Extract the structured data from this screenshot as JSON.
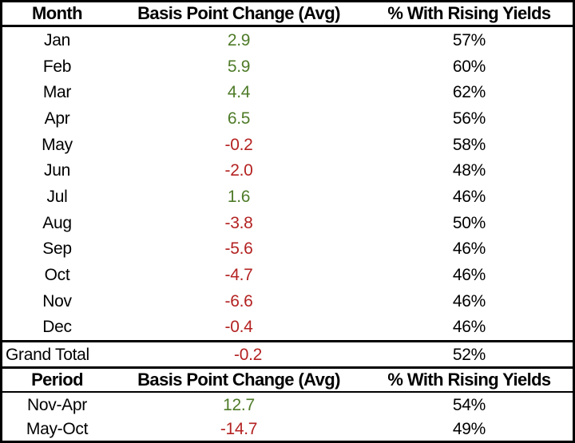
{
  "colors": {
    "positive": "#4e7b28",
    "negative": "#b42222",
    "text": "#000000",
    "border": "#000000",
    "background": "#ffffff"
  },
  "monthly_table": {
    "headers": [
      "Month",
      "Basis Point Change (Avg)",
      "% With Rising Yields"
    ],
    "rows": [
      {
        "month": "Jan",
        "bp_change": "2.9",
        "pct_rising": "57%"
      },
      {
        "month": "Feb",
        "bp_change": "5.9",
        "pct_rising": "60%"
      },
      {
        "month": "Mar",
        "bp_change": "4.4",
        "pct_rising": "62%"
      },
      {
        "month": "Apr",
        "bp_change": "6.5",
        "pct_rising": "56%"
      },
      {
        "month": "May",
        "bp_change": "-0.2",
        "pct_rising": "58%"
      },
      {
        "month": "Jun",
        "bp_change": "-2.0",
        "pct_rising": "48%"
      },
      {
        "month": "Jul",
        "bp_change": "1.6",
        "pct_rising": "46%"
      },
      {
        "month": "Aug",
        "bp_change": "-3.8",
        "pct_rising": "50%"
      },
      {
        "month": "Sep",
        "bp_change": "-5.6",
        "pct_rising": "46%"
      },
      {
        "month": "Oct",
        "bp_change": "-4.7",
        "pct_rising": "46%"
      },
      {
        "month": "Nov",
        "bp_change": "-6.6",
        "pct_rising": "46%"
      },
      {
        "month": "Dec",
        "bp_change": "-0.4",
        "pct_rising": "46%"
      }
    ],
    "grand_total": {
      "label": "Grand Total",
      "bp_change": "-0.2",
      "pct_rising": "52%"
    }
  },
  "period_table": {
    "headers": [
      "Period",
      "Basis Point Change (Avg)",
      "% With Rising Yields"
    ],
    "rows": [
      {
        "period": "Nov-Apr",
        "bp_change": "12.7",
        "pct_rising": "54%"
      },
      {
        "period": "May-Oct",
        "bp_change": "-14.7",
        "pct_rising": "49%"
      }
    ]
  },
  "chart_data": {
    "type": "table",
    "tables": [
      {
        "title": "Monthly bond yield changes",
        "columns": [
          "Month",
          "Basis Point Change (Avg)",
          "% With Rising Yields"
        ],
        "rows": [
          [
            "Jan",
            2.9,
            "57%"
          ],
          [
            "Feb",
            5.9,
            "60%"
          ],
          [
            "Mar",
            4.4,
            "62%"
          ],
          [
            "Apr",
            6.5,
            "56%"
          ],
          [
            "May",
            -0.2,
            "58%"
          ],
          [
            "Jun",
            -2.0,
            "48%"
          ],
          [
            "Jul",
            1.6,
            "46%"
          ],
          [
            "Aug",
            -3.8,
            "50%"
          ],
          [
            "Sep",
            -5.6,
            "46%"
          ],
          [
            "Oct",
            -4.7,
            "46%"
          ],
          [
            "Nov",
            -6.6,
            "46%"
          ],
          [
            "Dec",
            -0.4,
            "46%"
          ],
          [
            "Grand Total",
            -0.2,
            "52%"
          ]
        ]
      },
      {
        "title": "Seasonal periods",
        "columns": [
          "Period",
          "Basis Point Change (Avg)",
          "% With Rising Yields"
        ],
        "rows": [
          [
            "Nov-Apr",
            12.7,
            "54%"
          ],
          [
            "May-Oct",
            -14.7,
            "49%"
          ]
        ]
      }
    ],
    "value_color_rule": "positive values green, negative values dark red"
  }
}
